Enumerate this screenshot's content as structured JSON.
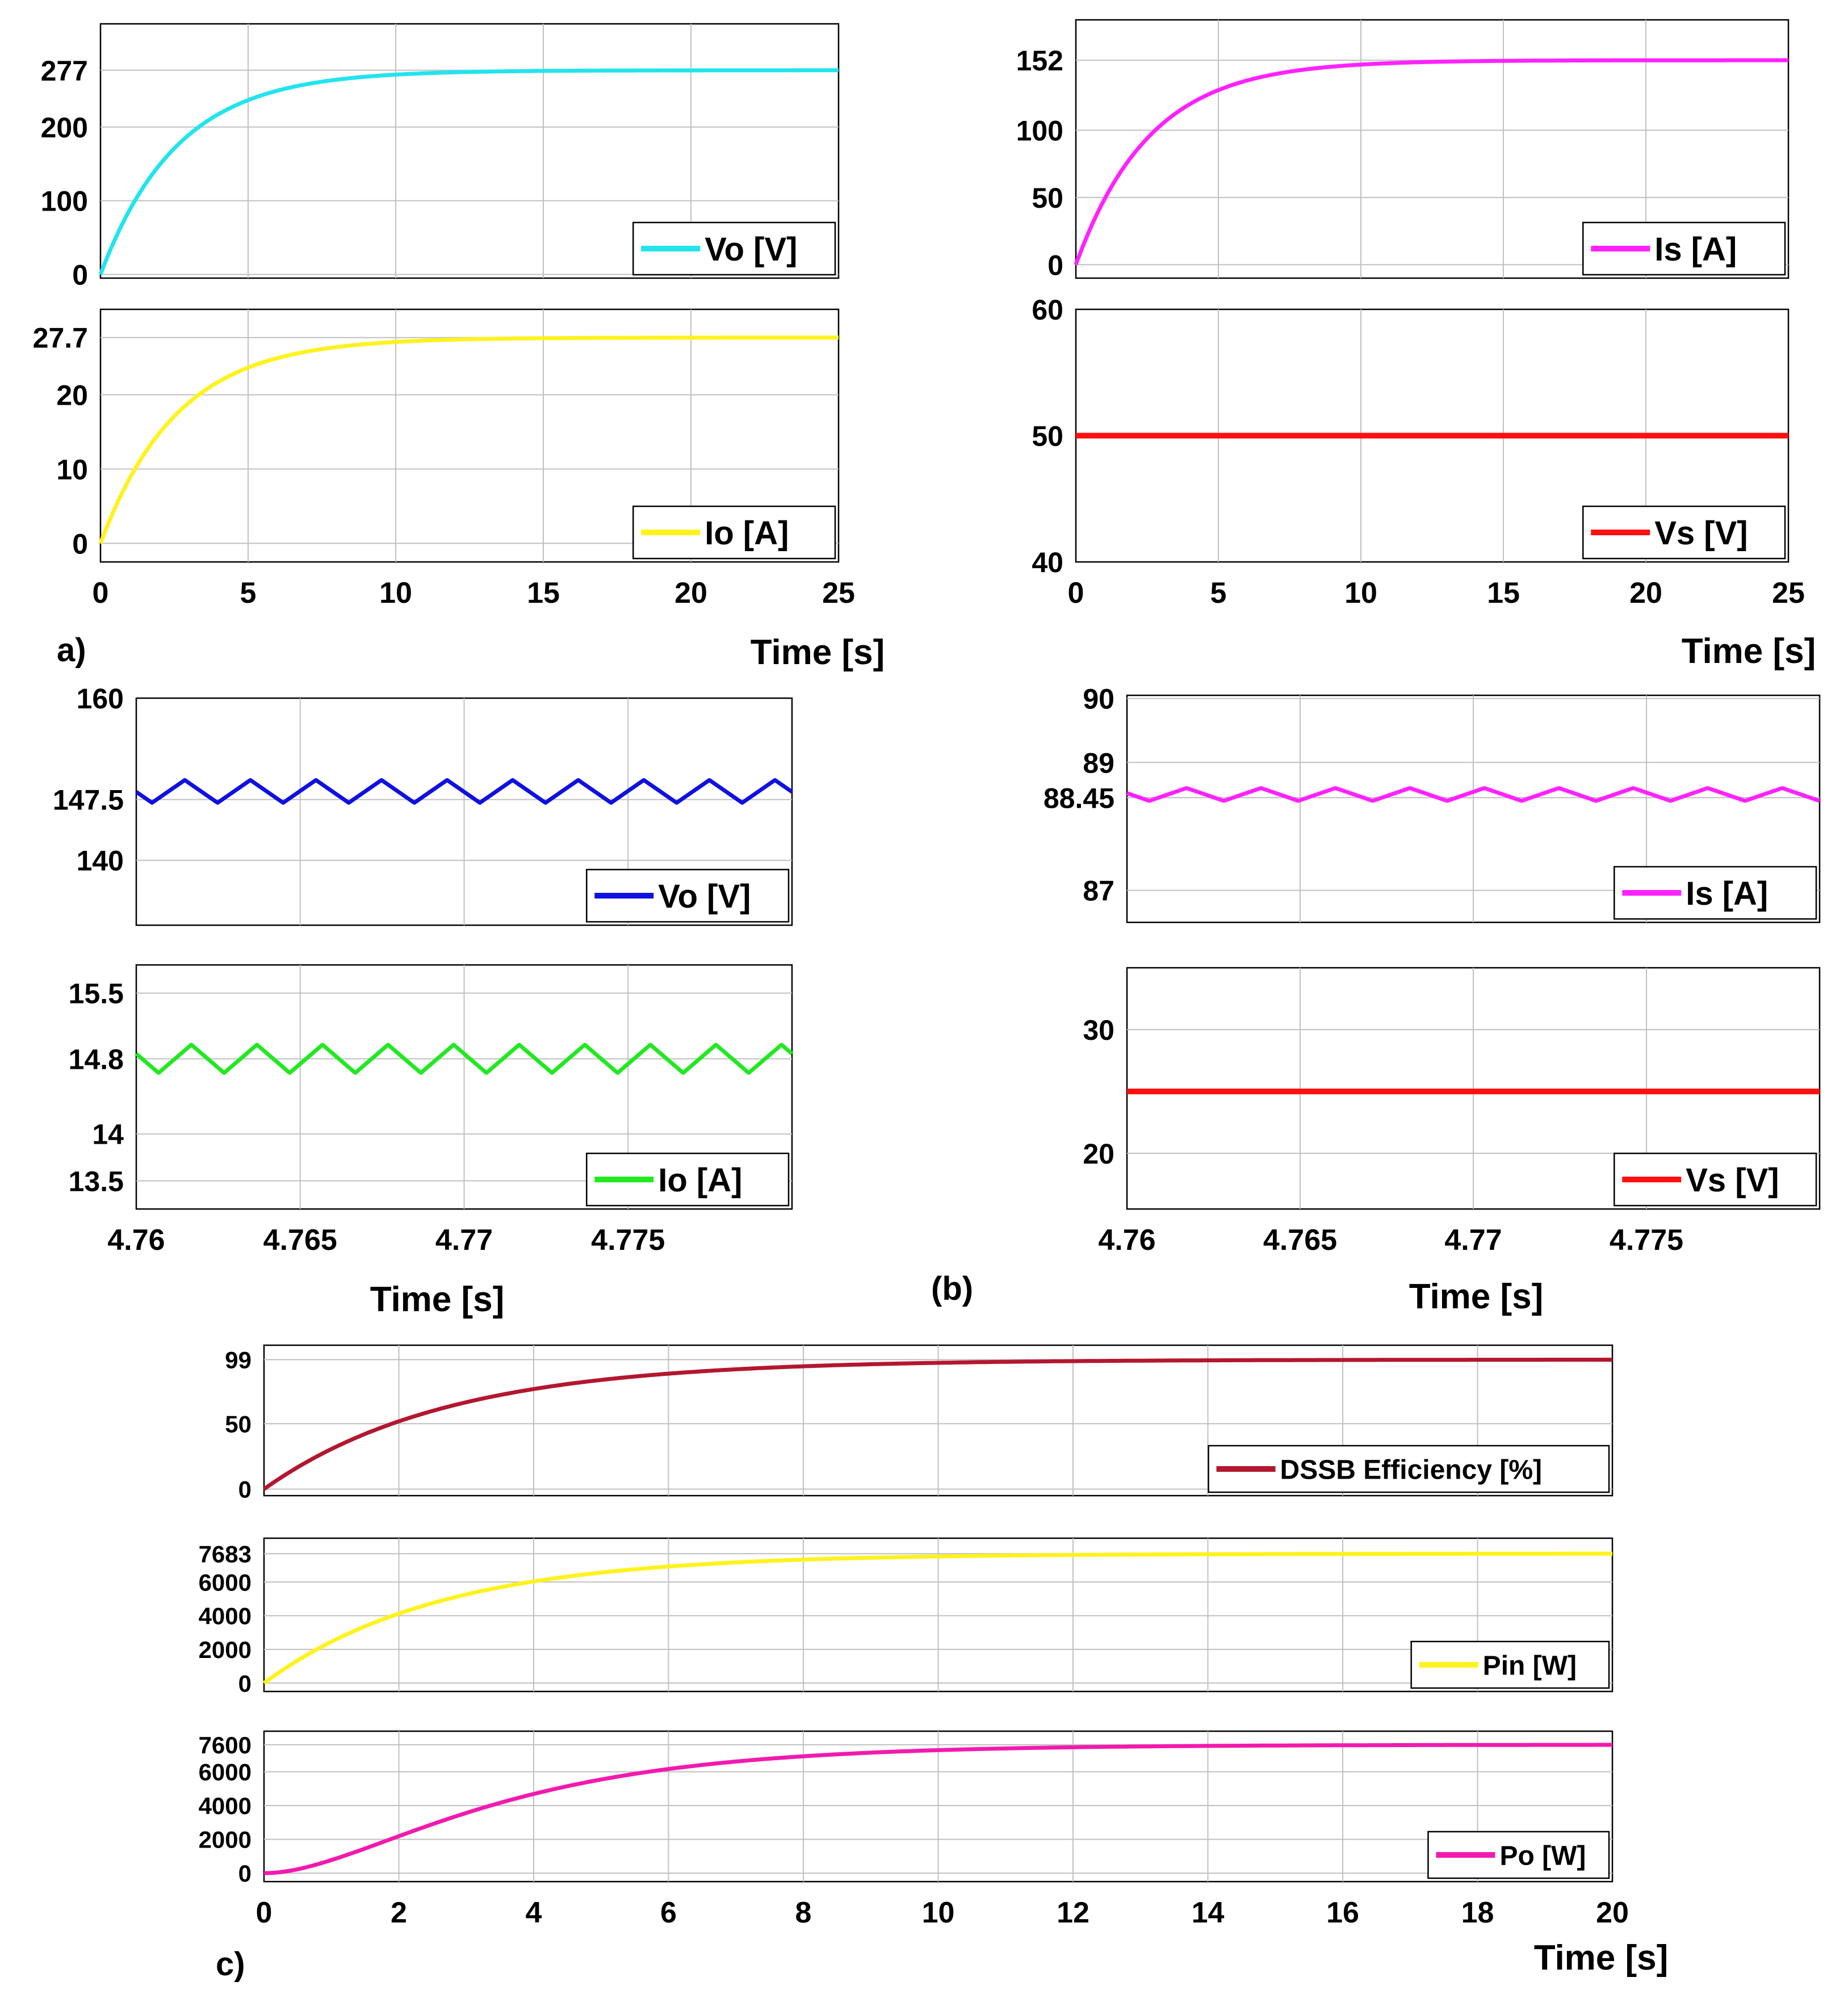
{
  "figure_labels": {
    "a": "a)",
    "b": "(b)",
    "c": "c)"
  },
  "colors": {
    "cyan": "#22E4EE",
    "magenta": "#FF22FF",
    "yellow": "#FFF21E",
    "red": "#FF1010",
    "blue": "#1010E0",
    "green": "#22E822",
    "darkred": "#B3172F",
    "pink": "#F21AAE",
    "grid": "#c0c0c0",
    "axis": "#000000"
  },
  "chart_data": [
    {
      "id": "a-vo",
      "type": "line",
      "group": "a",
      "series": [
        {
          "name": "Vo [V]",
          "color": "cyan",
          "shape": "exp",
          "final": 277,
          "tau": 2.6,
          "start": 0
        }
      ],
      "xlim": [
        0,
        25
      ],
      "ylim": [
        -5,
        340
      ],
      "xticks": [
        0,
        5,
        10,
        15,
        20,
        25
      ],
      "xtick_labels": [],
      "yticks": [
        0,
        100,
        200,
        277
      ],
      "ytick_labels": [
        "0",
        "100",
        "200",
        "277"
      ],
      "legend": "Vo [V]",
      "legend_position": "bottom-right",
      "xlabel": ""
    },
    {
      "id": "a-io",
      "type": "line",
      "group": "a",
      "series": [
        {
          "name": "Io [A]",
          "color": "yellow",
          "shape": "exp",
          "final": 27.7,
          "tau": 2.6,
          "start": 0
        }
      ],
      "xlim": [
        0,
        25
      ],
      "ylim": [
        -2.5,
        31.5
      ],
      "xticks": [
        0,
        5,
        10,
        15,
        20,
        25
      ],
      "xtick_labels": [
        "0",
        "5",
        "10",
        "15",
        "20",
        "25"
      ],
      "yticks": [
        0,
        10,
        20,
        27.7
      ],
      "ytick_labels": [
        "0",
        "10",
        "20",
        "27.7"
      ],
      "legend": "Io [A]",
      "legend_position": "bottom-right",
      "xlabel": "Time [s]"
    },
    {
      "id": "a-is",
      "type": "line",
      "group": "a",
      "series": [
        {
          "name": "Is [A]",
          "color": "magenta",
          "shape": "exp",
          "final": 152,
          "tau": 2.6,
          "start": 0
        }
      ],
      "xlim": [
        0,
        25
      ],
      "ylim": [
        -10,
        182
      ],
      "xticks": [
        0,
        5,
        10,
        15,
        20,
        25
      ],
      "xtick_labels": [],
      "yticks": [
        0,
        50,
        100,
        152
      ],
      "ytick_labels": [
        "0",
        "50",
        "100",
        "152"
      ],
      "legend": "Is [A]",
      "legend_position": "bottom-right",
      "xlabel": ""
    },
    {
      "id": "a-vs",
      "type": "line",
      "group": "a",
      "series": [
        {
          "name": "Vs [V]",
          "color": "red",
          "shape": "const",
          "final": 50
        }
      ],
      "xlim": [
        0,
        25
      ],
      "ylim": [
        40,
        60
      ],
      "xticks": [
        0,
        5,
        10,
        15,
        20,
        25
      ],
      "xtick_labels": [
        "0",
        "5",
        "10",
        "15",
        "20",
        "25"
      ],
      "yticks": [
        40,
        50,
        60
      ],
      "ytick_labels": [
        "40",
        "50",
        "60"
      ],
      "legend": "Vs [V]",
      "legend_position": "bottom-right",
      "xlabel": "Time [s]"
    },
    {
      "id": "b-vo",
      "type": "line",
      "group": "b",
      "series": [
        {
          "name": "Vo [V]",
          "color": "blue",
          "shape": "ripple",
          "center": 148.5,
          "amp": 1.4,
          "period": 0.002,
          "phase": 0.76
        }
      ],
      "xlim": [
        4.76,
        4.78
      ],
      "ylim": [
        132,
        160
      ],
      "xticks": [
        4.76,
        4.765,
        4.77,
        4.775
      ],
      "xtick_labels": [],
      "yticks": [
        140,
        147.5,
        160
      ],
      "ytick_labels": [
        "140",
        "147.5",
        "160"
      ],
      "legend": "Vo [V]",
      "legend_position": "bottom-right",
      "xlabel": ""
    },
    {
      "id": "b-io",
      "type": "line",
      "group": "b",
      "series": [
        {
          "name": "Io [A]",
          "color": "green",
          "shape": "ripple",
          "center": 14.8,
          "amp": 0.15,
          "period": 0.002,
          "phase": 0.66
        }
      ],
      "xlim": [
        4.76,
        4.78
      ],
      "ylim": [
        13.2,
        15.8
      ],
      "xticks": [
        4.76,
        4.765,
        4.77,
        4.775
      ],
      "xtick_labels": [
        "4.76",
        "4.765",
        "4.77",
        "4.775"
      ],
      "yticks": [
        13.5,
        14,
        14.8,
        15.5
      ],
      "ytick_labels": [
        "13.5",
        "14",
        "14.8",
        "15.5"
      ],
      "legend": "Io [A]",
      "legend_position": "bottom-right",
      "xlabel": "Time [s]"
    },
    {
      "id": "b-is",
      "type": "line",
      "group": "b",
      "series": [
        {
          "name": "Is [A]",
          "color": "magenta",
          "shape": "ripple",
          "center": 88.5,
          "amp": 0.1,
          "period": 0.00215,
          "phase": 0.7
        }
      ],
      "xlim": [
        4.76,
        4.78
      ],
      "ylim": [
        86.5,
        90.05
      ],
      "xticks": [
        4.76,
        4.765,
        4.77,
        4.775
      ],
      "xtick_labels": [],
      "yticks": [
        87,
        88.45,
        89,
        90
      ],
      "ytick_labels": [
        "87",
        "88.45",
        "89",
        "90"
      ],
      "legend": "Is [A]",
      "legend_position": "bottom-right",
      "xlabel": ""
    },
    {
      "id": "b-vs",
      "type": "line",
      "group": "b",
      "series": [
        {
          "name": "Vs [V]",
          "color": "red",
          "shape": "const",
          "final": 25
        }
      ],
      "xlim": [
        4.76,
        4.78
      ],
      "ylim": [
        15.5,
        35
      ],
      "xticks": [
        4.76,
        4.765,
        4.77,
        4.775
      ],
      "xtick_labels": [
        "4.76",
        "4.765",
        "4.77",
        "4.775"
      ],
      "yticks": [
        20,
        30
      ],
      "ytick_labels": [
        "20",
        "30"
      ],
      "legend": "Vs [V]",
      "legend_position": "bottom-right",
      "xlabel": "Time [s]"
    },
    {
      "id": "c-eff",
      "type": "line",
      "group": "c",
      "series": [
        {
          "name": "DSSB Efficiency [%]",
          "color": "darkred",
          "shape": "exp",
          "final": 99,
          "tau": 2.7,
          "start": 0
        }
      ],
      "xlim": [
        0,
        20
      ],
      "ylim": [
        -5,
        110
      ],
      "xticks": [
        0,
        2,
        4,
        6,
        8,
        10,
        12,
        14,
        16,
        18,
        20
      ],
      "xtick_labels": [],
      "yticks": [
        0,
        50,
        99
      ],
      "ytick_labels": [
        "0",
        "50",
        "99"
      ],
      "legend": "DSSB Efficiency [%]",
      "legend_position": "bottom-right",
      "xlabel": ""
    },
    {
      "id": "c-pin",
      "type": "line",
      "group": "c",
      "series": [
        {
          "name": "Pin [W]",
          "color": "yellow",
          "shape": "exp",
          "final": 7683,
          "tau": 2.6,
          "start": 0
        }
      ],
      "xlim": [
        0,
        20
      ],
      "ylim": [
        -500,
        8600
      ],
      "xticks": [
        0,
        2,
        4,
        6,
        8,
        10,
        12,
        14,
        16,
        18,
        20
      ],
      "xtick_labels": [],
      "yticks": [
        0,
        2000,
        4000,
        6000,
        7683
      ],
      "ytick_labels": [
        "0",
        "2000",
        "4000",
        "6000",
        "7683"
      ],
      "legend": "Pin [W]",
      "legend_position": "bottom-right",
      "xlabel": ""
    },
    {
      "id": "c-po",
      "type": "line",
      "group": "c",
      "series": [
        {
          "name": "Po [W]",
          "color": "pink",
          "shape": "exp2",
          "final": 7600,
          "tau": 2.6,
          "start": 0
        }
      ],
      "xlim": [
        0,
        20
      ],
      "ylim": [
        -500,
        8400
      ],
      "xticks": [
        0,
        2,
        4,
        6,
        8,
        10,
        12,
        14,
        16,
        18,
        20
      ],
      "xtick_labels": [
        "0",
        "2",
        "4",
        "6",
        "8",
        "10",
        "12",
        "14",
        "16",
        "18",
        "20"
      ],
      "yticks": [
        0,
        2000,
        4000,
        6000,
        7600
      ],
      "ytick_labels": [
        "0",
        "2000",
        "4000",
        "6000",
        "7600"
      ],
      "legend": "Po [W]",
      "legend_position": "bottom-right",
      "xlabel": "Time [s]"
    }
  ]
}
